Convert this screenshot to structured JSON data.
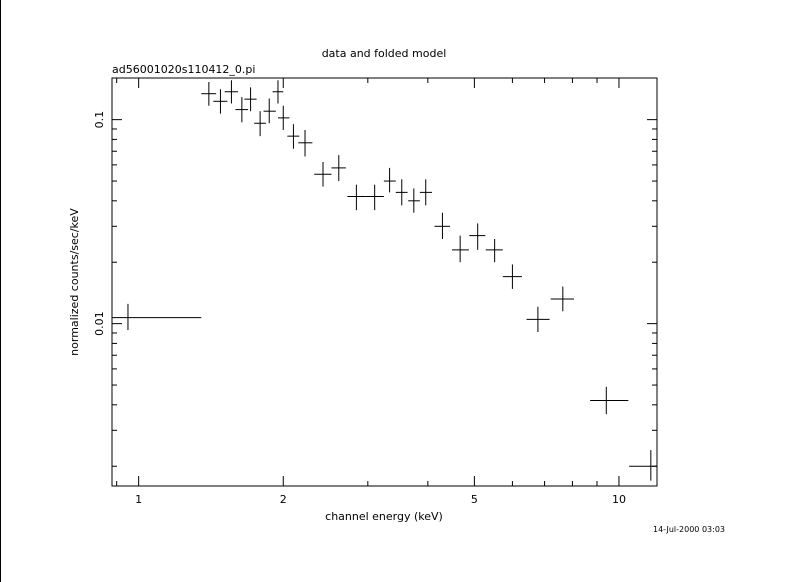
{
  "chart_data": {
    "type": "scatter",
    "title": "data and folded model",
    "subtitle": "ad56001020s110412_0.pi",
    "xlabel": "channel energy (keV)",
    "ylabel": "normalized counts/sec/keV",
    "x_scale": "log",
    "y_scale": "log",
    "xlim": [
      0.88,
      12.0
    ],
    "ylim": [
      0.0016,
      0.16
    ],
    "x_ticks": [
      {
        "value": 1,
        "label": "1"
      },
      {
        "value": 2,
        "label": "2"
      },
      {
        "value": 5,
        "label": "5"
      },
      {
        "value": 10,
        "label": "10"
      }
    ],
    "y_ticks": [
      {
        "value": 0.01,
        "label": "0.01"
      },
      {
        "value": 0.1,
        "label": "0.1"
      }
    ],
    "grid": false,
    "series": [
      {
        "style": "crosses",
        "points": [
          {
            "x": 0.95,
            "xlo": 0.88,
            "xhi": 1.35,
            "y": 0.0107,
            "ylo": 0.0093,
            "yhi": 0.0125
          },
          {
            "x": 1.4,
            "xlo": 1.35,
            "xhi": 1.45,
            "y": 0.134,
            "ylo": 0.117,
            "yhi": 0.153
          },
          {
            "x": 1.48,
            "xlo": 1.43,
            "xhi": 1.53,
            "y": 0.123,
            "ylo": 0.107,
            "yhi": 0.141
          },
          {
            "x": 1.56,
            "xlo": 1.51,
            "xhi": 1.61,
            "y": 0.137,
            "ylo": 0.12,
            "yhi": 0.156
          },
          {
            "x": 1.64,
            "xlo": 1.59,
            "xhi": 1.69,
            "y": 0.112,
            "ylo": 0.097,
            "yhi": 0.129
          },
          {
            "x": 1.71,
            "xlo": 1.66,
            "xhi": 1.76,
            "y": 0.126,
            "ylo": 0.11,
            "yhi": 0.144
          },
          {
            "x": 1.79,
            "xlo": 1.74,
            "xhi": 1.84,
            "y": 0.096,
            "ylo": 0.083,
            "yhi": 0.11
          },
          {
            "x": 1.87,
            "xlo": 1.82,
            "xhi": 1.93,
            "y": 0.11,
            "ylo": 0.096,
            "yhi": 0.127
          },
          {
            "x": 1.95,
            "xlo": 1.9,
            "xhi": 2.0,
            "y": 0.137,
            "ylo": 0.12,
            "yhi": 0.156
          },
          {
            "x": 2.0,
            "xlo": 1.95,
            "xhi": 2.06,
            "y": 0.102,
            "ylo": 0.089,
            "yhi": 0.117
          },
          {
            "x": 2.1,
            "xlo": 2.04,
            "xhi": 2.16,
            "y": 0.083,
            "ylo": 0.072,
            "yhi": 0.095
          },
          {
            "x": 2.22,
            "xlo": 2.15,
            "xhi": 2.3,
            "y": 0.077,
            "ylo": 0.066,
            "yhi": 0.089
          },
          {
            "x": 2.42,
            "xlo": 2.32,
            "xhi": 2.52,
            "y": 0.054,
            "ylo": 0.047,
            "yhi": 0.062
          },
          {
            "x": 2.61,
            "xlo": 2.52,
            "xhi": 2.7,
            "y": 0.058,
            "ylo": 0.05,
            "yhi": 0.067
          },
          {
            "x": 2.84,
            "xlo": 2.72,
            "xhi": 2.97,
            "y": 0.042,
            "ylo": 0.036,
            "yhi": 0.048
          },
          {
            "x": 3.1,
            "xlo": 2.97,
            "xhi": 3.24,
            "y": 0.042,
            "ylo": 0.036,
            "yhi": 0.048
          },
          {
            "x": 3.33,
            "xlo": 3.24,
            "xhi": 3.43,
            "y": 0.05,
            "ylo": 0.044,
            "yhi": 0.058
          },
          {
            "x": 3.53,
            "xlo": 3.43,
            "xhi": 3.63,
            "y": 0.044,
            "ylo": 0.038,
            "yhi": 0.051
          },
          {
            "x": 3.74,
            "xlo": 3.64,
            "xhi": 3.85,
            "y": 0.04,
            "ylo": 0.035,
            "yhi": 0.046
          },
          {
            "x": 3.96,
            "xlo": 3.85,
            "xhi": 4.08,
            "y": 0.044,
            "ylo": 0.038,
            "yhi": 0.051
          },
          {
            "x": 4.29,
            "xlo": 4.13,
            "xhi": 4.45,
            "y": 0.03,
            "ylo": 0.026,
            "yhi": 0.035
          },
          {
            "x": 4.67,
            "xlo": 4.49,
            "xhi": 4.87,
            "y": 0.023,
            "ylo": 0.02,
            "yhi": 0.027
          },
          {
            "x": 5.08,
            "xlo": 4.88,
            "xhi": 5.27,
            "y": 0.027,
            "ylo": 0.023,
            "yhi": 0.031
          },
          {
            "x": 5.51,
            "xlo": 5.28,
            "xhi": 5.73,
            "y": 0.023,
            "ylo": 0.02,
            "yhi": 0.026
          },
          {
            "x": 6.0,
            "xlo": 5.73,
            "xhi": 6.28,
            "y": 0.017,
            "ylo": 0.0148,
            "yhi": 0.0195
          },
          {
            "x": 6.78,
            "xlo": 6.42,
            "xhi": 7.17,
            "y": 0.0105,
            "ylo": 0.0091,
            "yhi": 0.0121
          },
          {
            "x": 7.64,
            "xlo": 7.21,
            "xhi": 8.06,
            "y": 0.0132,
            "ylo": 0.0115,
            "yhi": 0.0152
          },
          {
            "x": 9.41,
            "xlo": 8.71,
            "xhi": 10.46,
            "y": 0.0042,
            "ylo": 0.0036,
            "yhi": 0.0049
          },
          {
            "x": 11.65,
            "xlo": 10.5,
            "xhi": 12.0,
            "y": 0.002,
            "ylo": 0.0017,
            "yhi": 0.0024
          }
        ]
      }
    ],
    "timestamp": "14-Jul-2000 03:03"
  }
}
